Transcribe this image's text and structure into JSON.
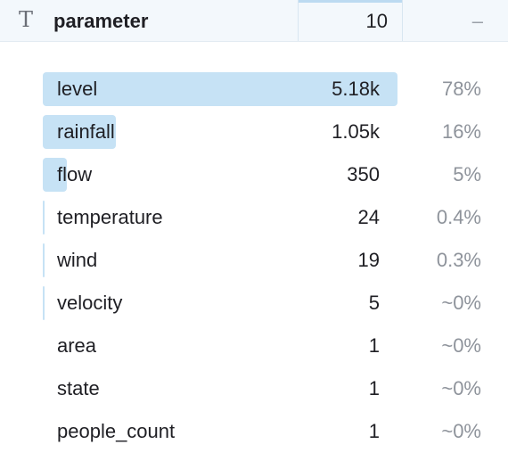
{
  "header": {
    "type_icon": "text-type-icon",
    "column_name": "parameter",
    "distinct_count": "10",
    "pct": "–"
  },
  "rows": [
    {
      "label": "level",
      "count": "5.18k",
      "pct": "78%",
      "share": 0.78
    },
    {
      "label": "rainfall",
      "count": "1.05k",
      "pct": "16%",
      "share": 0.16
    },
    {
      "label": "flow",
      "count": "350",
      "pct": "5%",
      "share": 0.053
    },
    {
      "label": "temperature",
      "count": "24",
      "pct": "0.4%",
      "share": 0.004
    },
    {
      "label": "wind",
      "count": "19",
      "pct": "0.3%",
      "share": 0.003
    },
    {
      "label": "velocity",
      "count": "5",
      "pct": "~0%",
      "share": 0.0008
    },
    {
      "label": "area",
      "count": "1",
      "pct": "~0%",
      "share": 0
    },
    {
      "label": "state",
      "count": "1",
      "pct": "~0%",
      "share": 0
    },
    {
      "label": "people_count",
      "count": "1",
      "pct": "~0%",
      "share": 0
    }
  ]
}
